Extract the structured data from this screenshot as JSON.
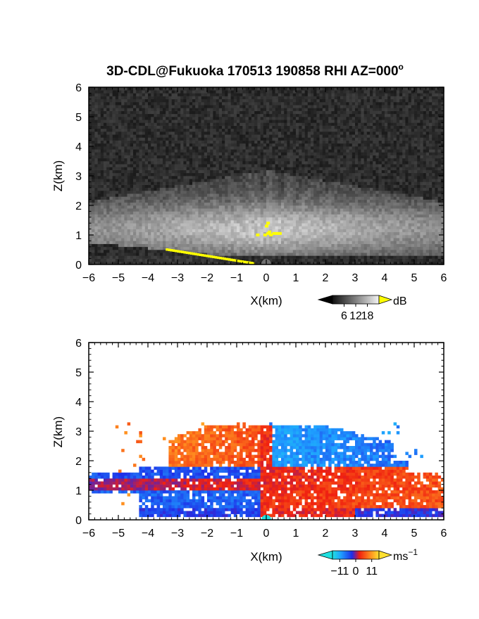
{
  "title": "3D-CDL@Fukuoka 170513 190858 RHI AZ=000",
  "title_sup": "o",
  "chart_data": [
    {
      "type": "heatmap",
      "panel": "top",
      "xlabel": "X(km)",
      "ylabel": "Z(km)",
      "xlim": [
        -6,
        6
      ],
      "ylim": [
        0,
        6
      ],
      "xticks": [
        "-6",
        "-5",
        "-4",
        "-3",
        "-2",
        "-1",
        "0",
        "1",
        "2",
        "3",
        "4",
        "5",
        "6"
      ],
      "yticks": [
        "0",
        "1",
        "2",
        "3",
        "4",
        "5",
        "6"
      ],
      "colorbar": {
        "unit": "dB",
        "ticks": [
          "6",
          "12",
          "18"
        ],
        "range": [
          0,
          24
        ],
        "colormap": "grayscale",
        "over_color": "#ffff00"
      },
      "field": {
        "description_values": "signal-to-noise ratio, bright layer 0.3-3.2 km, peak ~18 dB near X=0, Z=1",
        "background_db": 3,
        "layer_top_km": 3.2,
        "layer_peak_km": 1.2,
        "peak_db": 18
      }
    },
    {
      "type": "heatmap",
      "panel": "bottom",
      "xlabel": "X(km)",
      "ylabel": "Z(km)",
      "xlim": [
        -6,
        6
      ],
      "ylim": [
        0,
        6
      ],
      "xticks": [
        "-6",
        "-5",
        "-4",
        "-3",
        "-2",
        "-1",
        "0",
        "1",
        "2",
        "3",
        "4",
        "5",
        "6"
      ],
      "yticks": [
        "0",
        "1",
        "2",
        "3",
        "4",
        "5",
        "6"
      ],
      "colorbar": {
        "unit": "ms",
        "unit_sup": "−1",
        "ticks": [
          "−11",
          "0",
          "11"
        ],
        "range": [
          -16,
          16
        ],
        "colormap": "cyan-blue-red-yellow"
      },
      "field": {
        "description_values": "radial velocity; positive (red/orange/yellow) on left at 2-3.2 km and in 1.0-1.5 km layer, negative (blue/cyan) upper right and lower layer",
        "upper_left_ms": 9,
        "upper_right_ms": -10,
        "mid_layer_ms": 3,
        "low_layer_left_ms": -6
      }
    }
  ]
}
